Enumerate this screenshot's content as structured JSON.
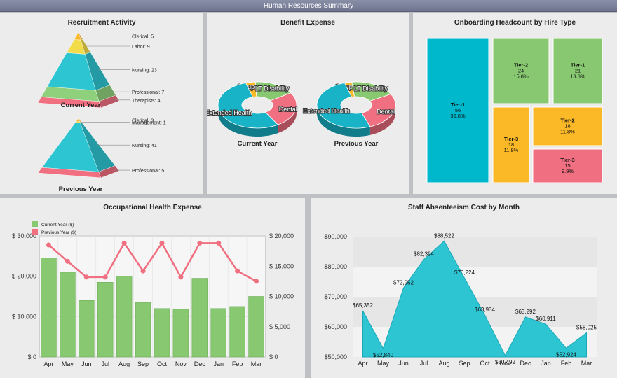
{
  "window_title": "Human Resources Summary",
  "recruitment": {
    "title": "Recruitment Activity",
    "current": {
      "caption": "Current Year",
      "labels": [
        "Clerical: 5",
        "Labor: 9",
        "Nursing: 23",
        "Professional: 7",
        "Therapists: 4"
      ]
    },
    "previous": {
      "caption": "Previous Year",
      "labels": [
        "Clerical: 3",
        "Management: 1",
        "Nursing: 41",
        "Professional: 5"
      ]
    }
  },
  "benefit": {
    "title": "Benefit Expense",
    "segment_labels": [
      "Group Life",
      "LT Disability",
      "Dental",
      "Extended Health"
    ],
    "captions": [
      "Current Year",
      "Previous Year"
    ]
  },
  "onboarding": {
    "title": "Onboarding Headcount by Hire Type",
    "tiles": [
      {
        "name": "Tier-1",
        "count": "56",
        "pct": "36.8%",
        "color": "#00b8cc"
      },
      {
        "name": "Tier-2",
        "count": "24",
        "pct": "15.8%",
        "color": "#88c870"
      },
      {
        "name": "Tier-1",
        "count": "21",
        "pct": "13.8%",
        "color": "#88c870"
      },
      {
        "name": "Tier-3",
        "count": "18",
        "pct": "11.8%",
        "color": "#fbb827"
      },
      {
        "name": "Tier-2",
        "count": "18",
        "pct": "11.8%",
        "color": "#fbb827"
      },
      {
        "name": "Tier-3",
        "count": "15",
        "pct": "9.9%",
        "color": "#f06f80"
      }
    ]
  },
  "occupational": {
    "title": "Occupational Health Expense",
    "legend": [
      "Current Year ($)",
      "Previous Year ($)"
    ],
    "left_ticks": [
      "$ 30,000",
      "$ 20,000",
      "$ 10,000",
      "$ 0"
    ],
    "right_ticks": [
      "$ 20,000",
      "$ 15,000",
      "$ 10,000",
      "$ 5,000",
      "$ 0"
    ]
  },
  "absenteeism": {
    "title": "Staff Absenteeism Cost by Month",
    "y_ticks": [
      "$90,000",
      "$80,000",
      "$70,000",
      "$60,000",
      "$50,000"
    ],
    "point_labels": [
      "$65,352",
      "$52,840",
      "$72,952",
      "$82,394",
      "$88,522",
      "$76,224",
      "$63,934",
      "$50,492",
      "$63,292",
      "$60,911",
      "$52,924",
      "$58,025"
    ]
  },
  "chart_data": [
    {
      "type": "pyramid",
      "title": "Recruitment Activity — Current Year",
      "categories": [
        "Clerical",
        "Labor",
        "Nursing",
        "Professional",
        "Therapists"
      ],
      "values": [
        5,
        9,
        23,
        7,
        4
      ],
      "colors": [
        "#fbb827",
        "#f3dc4a",
        "#2ec5d3",
        "#8fd07c",
        "#f06f80"
      ]
    },
    {
      "type": "pyramid",
      "title": "Recruitment Activity — Previous Year",
      "categories": [
        "Clerical",
        "Management",
        "Nursing",
        "Professional"
      ],
      "values": [
        3,
        1,
        41,
        5
      ],
      "colors": [
        "#fbb827",
        "#f3dc4a",
        "#2ec5d3",
        "#f06f80"
      ]
    },
    {
      "type": "pie",
      "title": "Benefit Expense — Current Year",
      "categories": [
        "Group Life",
        "LT Disability",
        "Dental",
        "Extended Health"
      ],
      "values": [
        4,
        17,
        25,
        54
      ],
      "colors": [
        "#fbb827",
        "#88c870",
        "#f06f80",
        "#18b3c6"
      ]
    },
    {
      "type": "pie",
      "title": "Benefit Expense — Previous Year",
      "categories": [
        "Group Life",
        "LT Disability",
        "Dental",
        "Extended Health"
      ],
      "values": [
        3,
        19,
        27,
        51
      ],
      "colors": [
        "#fbb827",
        "#88c870",
        "#f06f80",
        "#18b3c6"
      ]
    },
    {
      "type": "treemap",
      "title": "Onboarding Headcount by Hire Type",
      "categories": [
        "Tier-1",
        "Tier-2",
        "Tier-1",
        "Tier-3",
        "Tier-2",
        "Tier-3"
      ],
      "values": [
        56,
        24,
        21,
        18,
        18,
        15
      ]
    },
    {
      "type": "bar",
      "title": "Occupational Health Expense",
      "categories": [
        "Apr",
        "May",
        "Jun",
        "Jul",
        "Aug",
        "Sep",
        "Oct",
        "Nov",
        "Dec",
        "Jan",
        "Feb",
        "Mar"
      ],
      "series": [
        {
          "name": "Current Year ($)",
          "type": "bar",
          "axis": "left",
          "values": [
            24500,
            21000,
            14000,
            18500,
            20000,
            13500,
            12000,
            11800,
            19500,
            12000,
            12500,
            15000
          ],
          "color": "#88c870"
        },
        {
          "name": "Previous Year ($)",
          "type": "line",
          "axis": "right",
          "values": [
            18500,
            15800,
            13200,
            13200,
            18800,
            14200,
            18800,
            13200,
            18800,
            18800,
            14200,
            12500
          ],
          "color": "#f06f80"
        }
      ],
      "ylim_left": [
        0,
        30000
      ],
      "ylim_right": [
        0,
        20000
      ]
    },
    {
      "type": "area",
      "title": "Staff Absenteeism Cost by Month",
      "categories": [
        "Apr",
        "May",
        "Jun",
        "Jul",
        "Aug",
        "Sep",
        "Oct",
        "Nov",
        "Dec",
        "Jan",
        "Feb",
        "Mar"
      ],
      "values": [
        65352,
        52840,
        72952,
        82394,
        88522,
        76224,
        63934,
        50492,
        63292,
        60911,
        52924,
        58025
      ],
      "ylim": [
        50000,
        90000
      ],
      "color": "#2ec5d3"
    }
  ]
}
